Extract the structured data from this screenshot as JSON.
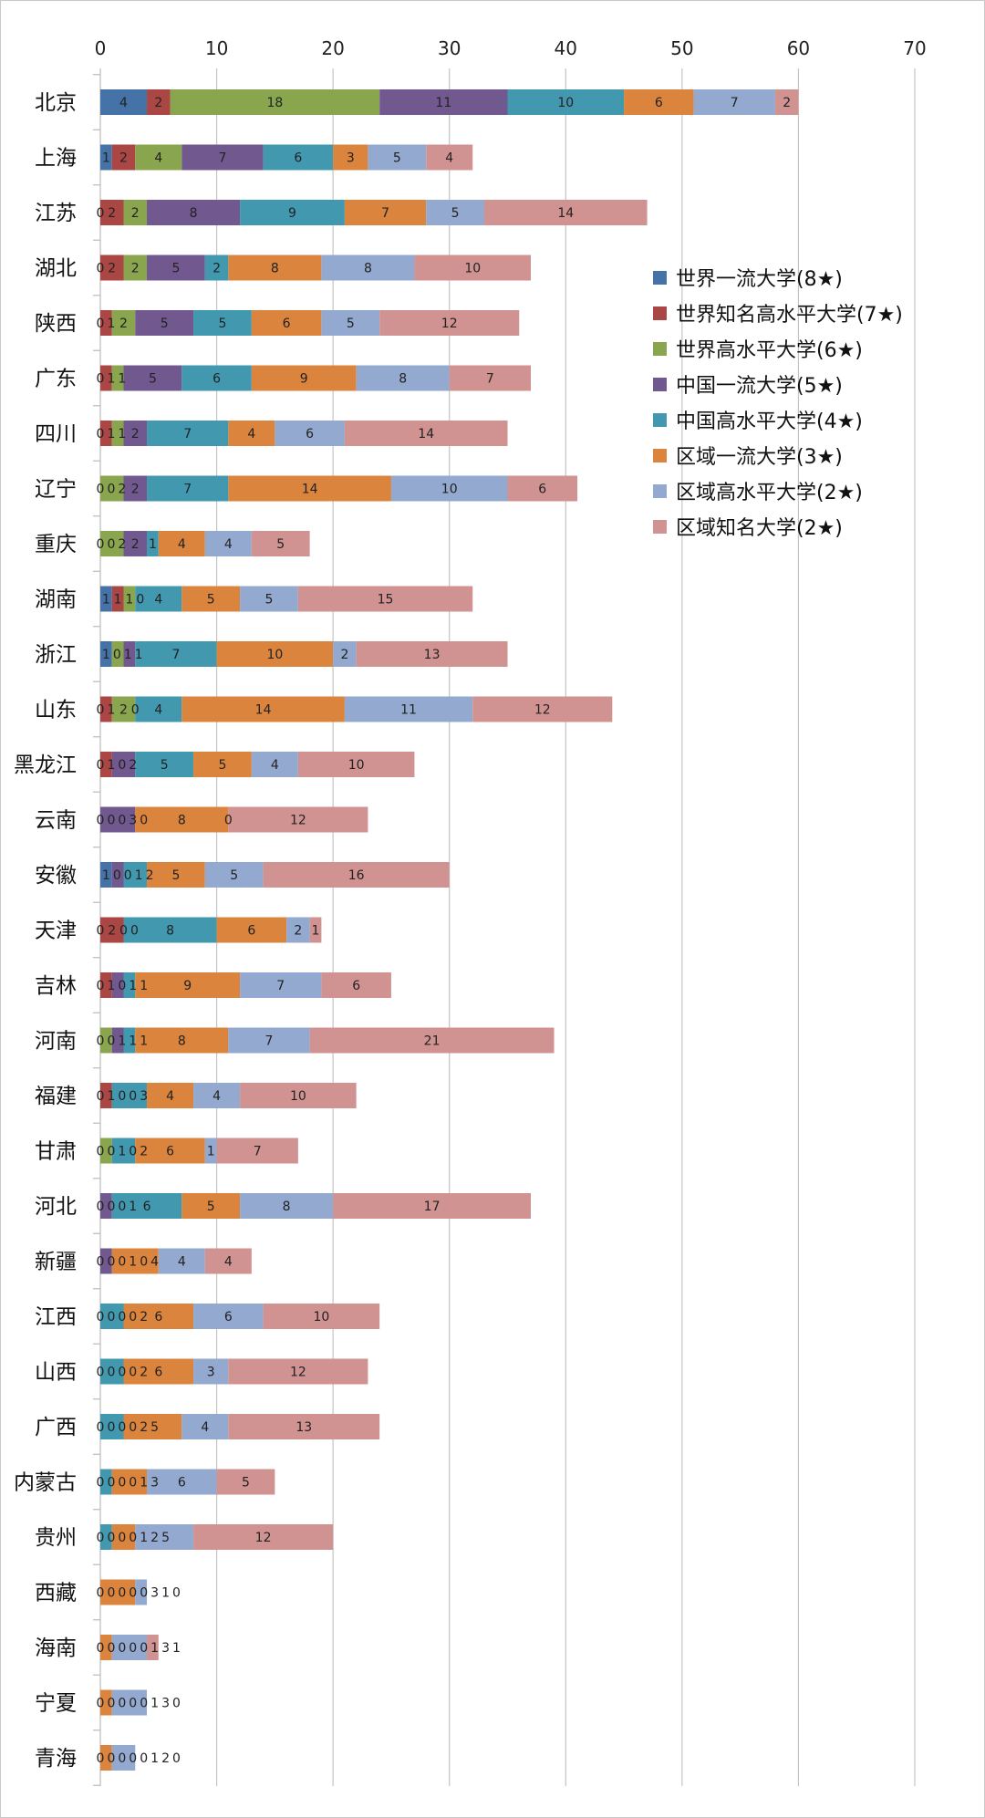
{
  "chart_data": {
    "type": "bar",
    "orientation": "horizontal",
    "stacked": true,
    "title": "",
    "xlabel": "",
    "ylabel": "",
    "xlim": [
      0,
      70
    ],
    "xticks": [
      0,
      10,
      20,
      30,
      40,
      50,
      60,
      70
    ],
    "x_axis_position": "top",
    "grid": true,
    "legend_position": "right",
    "data_labels": true,
    "categories": [
      "北京",
      "上海",
      "江苏",
      "湖北",
      "陕西",
      "广东",
      "四川",
      "辽宁",
      "重庆",
      "湖南",
      "浙江",
      "山东",
      "黑龙江",
      "云南",
      "安徽",
      "天津",
      "吉林",
      "河南",
      "福建",
      "甘肃",
      "河北",
      "新疆",
      "江西",
      "山西",
      "广西",
      "内蒙古",
      "贵州",
      "西藏",
      "海南",
      "宁夏",
      "青海"
    ],
    "series": [
      {
        "name": "世界一流大学(8★)",
        "color": "#4572A7",
        "values": [
          4,
          1,
          0,
          0,
          0,
          0,
          0,
          0,
          0,
          1,
          1,
          0,
          0,
          0,
          1,
          0,
          0,
          0,
          0,
          0,
          0,
          0,
          0,
          0,
          0,
          0,
          0,
          0,
          0,
          0,
          0
        ]
      },
      {
        "name": "世界知名高水平大学(7★)",
        "color": "#AA4643",
        "values": [
          2,
          2,
          2,
          2,
          1,
          1,
          1,
          0,
          0,
          1,
          0,
          1,
          1,
          0,
          0,
          2,
          1,
          0,
          1,
          0,
          0,
          0,
          0,
          0,
          0,
          0,
          0,
          0,
          0,
          0,
          0
        ]
      },
      {
        "name": "世界高水平大学(6★)",
        "color": "#89A54E",
        "values": [
          18,
          4,
          2,
          2,
          2,
          1,
          1,
          2,
          2,
          1,
          1,
          2,
          0,
          0,
          0,
          0,
          0,
          1,
          0,
          1,
          0,
          0,
          0,
          0,
          0,
          0,
          0,
          0,
          0,
          0,
          0
        ]
      },
      {
        "name": "中国一流大学(5★)",
        "color": "#71588F",
        "values": [
          11,
          7,
          8,
          5,
          5,
          5,
          2,
          2,
          2,
          0,
          1,
          0,
          2,
          3,
          1,
          0,
          1,
          1,
          0,
          0,
          1,
          1,
          0,
          0,
          0,
          0,
          0,
          0,
          0,
          0,
          0
        ]
      },
      {
        "name": "中国高水平大学(4★)",
        "color": "#4198AF",
        "values": [
          10,
          6,
          9,
          2,
          5,
          6,
          7,
          7,
          1,
          4,
          7,
          4,
          5,
          0,
          2,
          8,
          1,
          1,
          3,
          2,
          6,
          0,
          2,
          2,
          2,
          1,
          1,
          0,
          0,
          0,
          0
        ]
      },
      {
        "name": "区域一流大学(3★)",
        "color": "#DB843D",
        "values": [
          6,
          3,
          7,
          8,
          6,
          9,
          4,
          14,
          4,
          5,
          10,
          14,
          5,
          8,
          5,
          6,
          9,
          8,
          4,
          6,
          5,
          4,
          6,
          6,
          5,
          3,
          2,
          3,
          1,
          1,
          1
        ]
      },
      {
        "name": "区域高水平大学(2★)",
        "color": "#93A9CF",
        "values": [
          7,
          5,
          5,
          8,
          5,
          8,
          6,
          10,
          4,
          5,
          2,
          11,
          4,
          0,
          5,
          2,
          7,
          7,
          4,
          1,
          8,
          4,
          6,
          3,
          4,
          6,
          5,
          1,
          3,
          3,
          2
        ]
      },
      {
        "name": "区域知名大学(2★)",
        "color": "#D19392",
        "values": [
          2,
          4,
          14,
          10,
          12,
          7,
          14,
          6,
          5,
          15,
          13,
          12,
          10,
          12,
          16,
          1,
          6,
          21,
          10,
          7,
          17,
          4,
          10,
          12,
          13,
          5,
          12,
          0,
          1,
          0,
          0
        ]
      }
    ]
  }
}
